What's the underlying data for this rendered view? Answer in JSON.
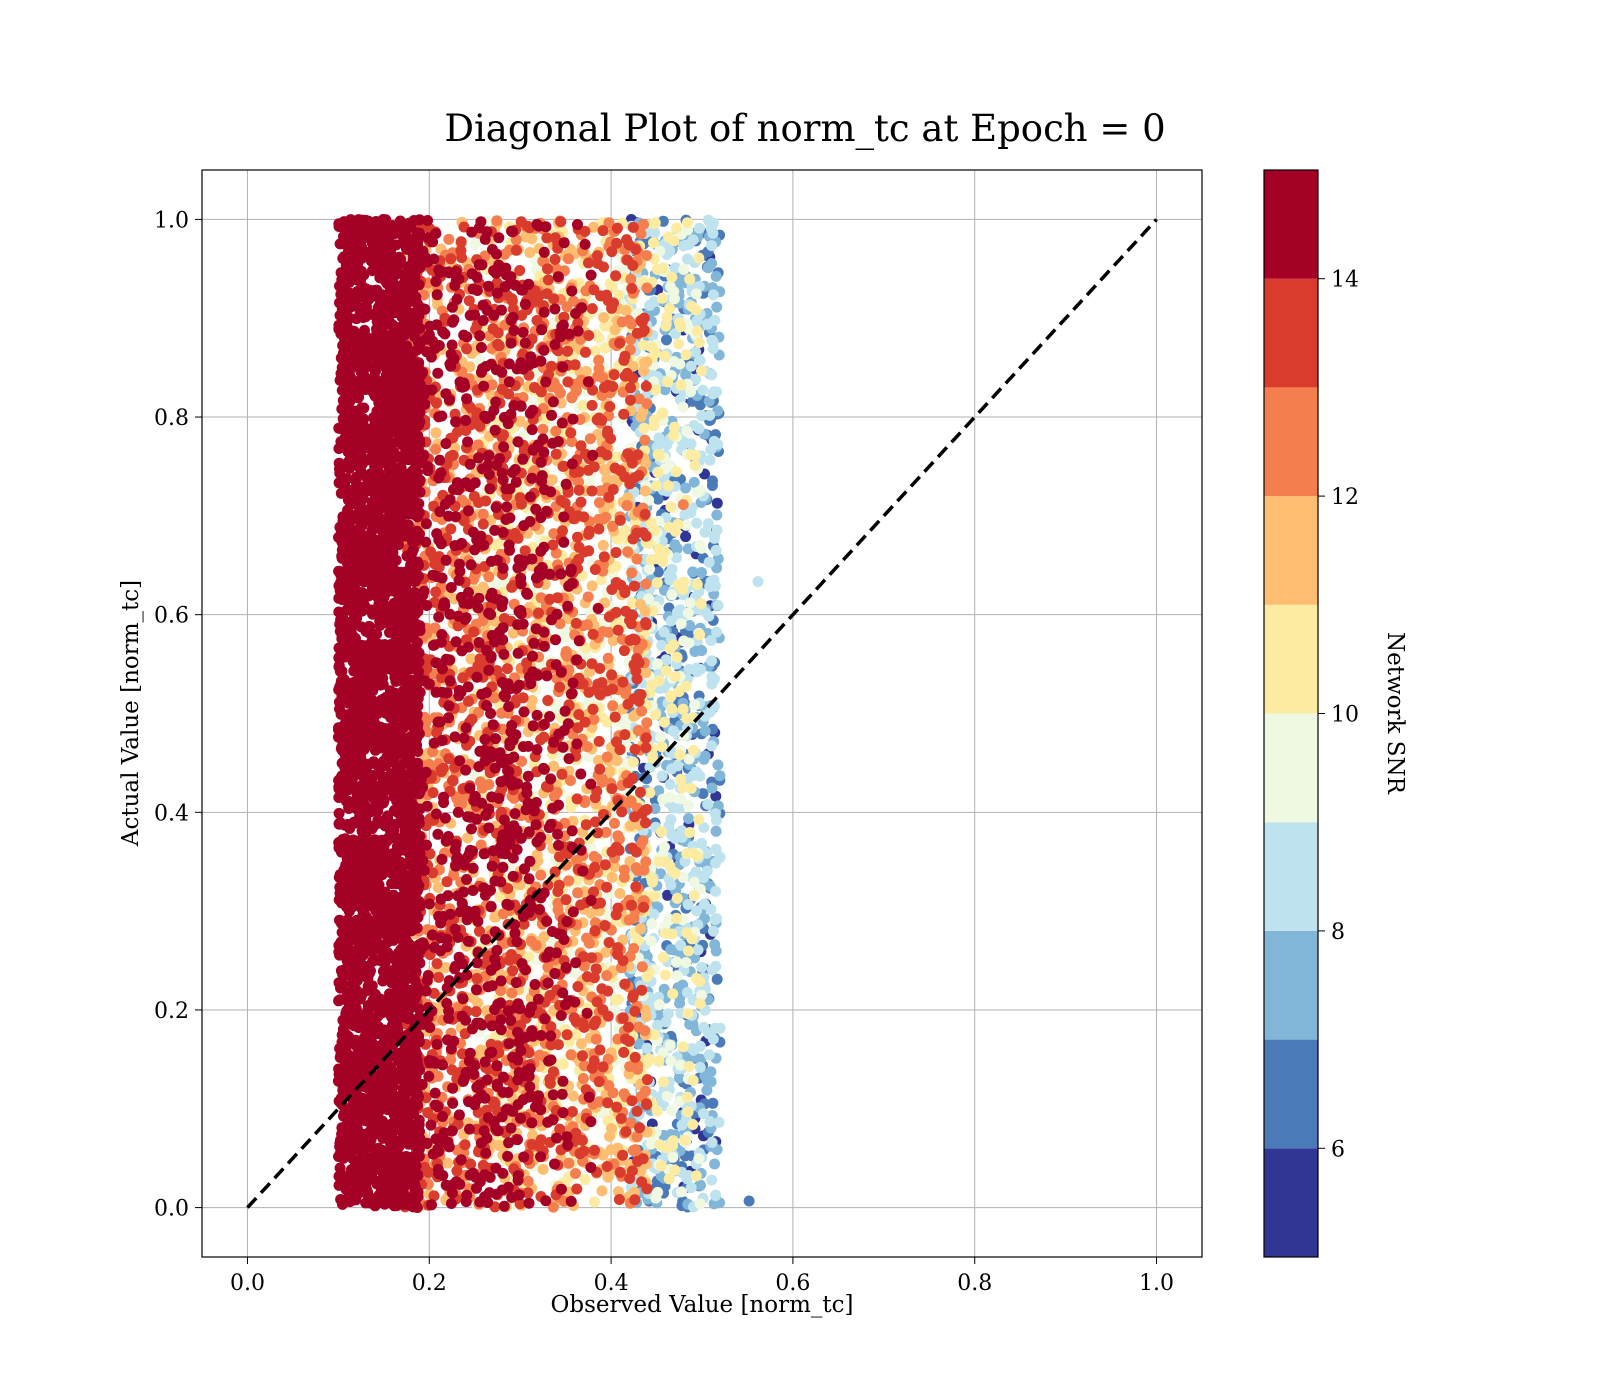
{
  "chart_data": {
    "type": "scatter",
    "title": "Diagonal Plot of norm_tc at Epoch = 0",
    "xlabel": "Observed Value [norm_tc]",
    "ylabel": "Actual Value [norm_tc]",
    "xlim": [
      -0.05,
      1.05
    ],
    "ylim": [
      -0.05,
      1.05
    ],
    "xticks": [
      "0.0",
      "0.2",
      "0.4",
      "0.6",
      "0.8",
      "1.0"
    ],
    "yticks": [
      "0.0",
      "0.2",
      "0.4",
      "0.6",
      "0.8",
      "1.0"
    ],
    "grid": true,
    "reference_line": {
      "x": [
        0.0,
        1.0
      ],
      "y": [
        0.0,
        1.0
      ],
      "style": "dashed",
      "color": "#000000"
    },
    "point_distribution": {
      "y_range": [
        0.0,
        1.0
      ],
      "x_range_low_snr": [
        0.45,
        0.6
      ],
      "x_range_high_snr": [
        0.09,
        0.2
      ],
      "approx_points_shown": 9000
    },
    "colorbar": {
      "label": "Network SNR",
      "range": [
        5,
        15
      ],
      "ticks": [
        "6",
        "8",
        "10",
        "12",
        "14"
      ],
      "levels": [
        5,
        6,
        7,
        8,
        9,
        10,
        11,
        12,
        13,
        14,
        15
      ],
      "colors": [
        "#313695",
        "#4a7ab7",
        "#81b6d8",
        "#bfe3ee",
        "#eff8e1",
        "#fdeba2",
        "#fdbe71",
        "#f57e4e",
        "#d93b2c",
        "#a50026"
      ]
    }
  }
}
